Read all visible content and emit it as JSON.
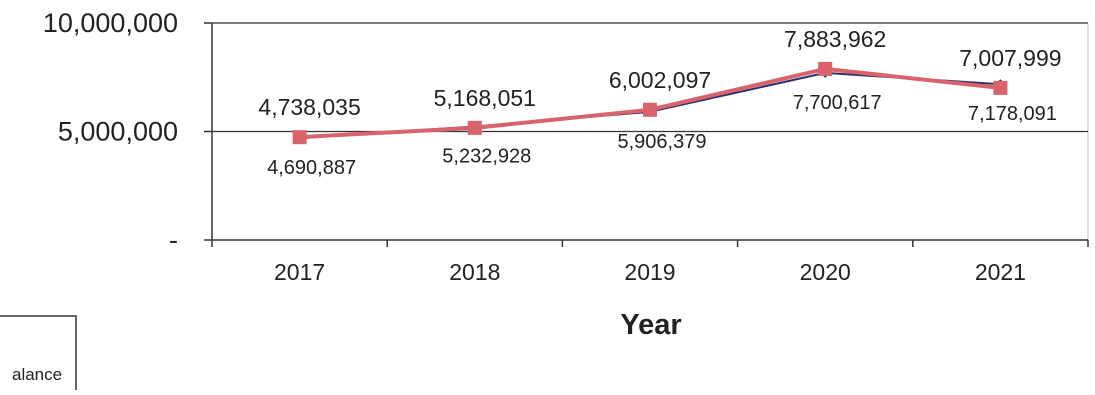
{
  "chart_data": {
    "type": "line",
    "categories": [
      "2017",
      "2018",
      "2019",
      "2020",
      "2021"
    ],
    "series": [
      {
        "values": [
          4738035,
          5168051,
          6002097,
          7883962,
          7007999
        ],
        "color": "#d9636a",
        "marker": "square"
      },
      {
        "values": [
          4690887,
          5232928,
          5906379,
          7700617,
          7178091
        ],
        "color": "#2f2f6e",
        "marker": "diamond"
      }
    ],
    "top_labels": [
      "4,738,035",
      "5,168,051",
      "6,002,097",
      "7,883,962",
      "7,007,999"
    ],
    "bottom_labels": [
      "4,690,887",
      "5,232,928",
      "5,906,379",
      "7,700,617",
      "7,178,091"
    ],
    "y_ticks": [
      {
        "value": 0,
        "label": "-"
      },
      {
        "value": 5000000,
        "label": "5,000,000"
      },
      {
        "value": 10000000,
        "label": "10,000,000"
      }
    ],
    "ylim": [
      0,
      10000000
    ],
    "xlabel": "Year",
    "ylabel": "",
    "title": "",
    "grid": "horizontal",
    "legend_fragment": "alance"
  }
}
